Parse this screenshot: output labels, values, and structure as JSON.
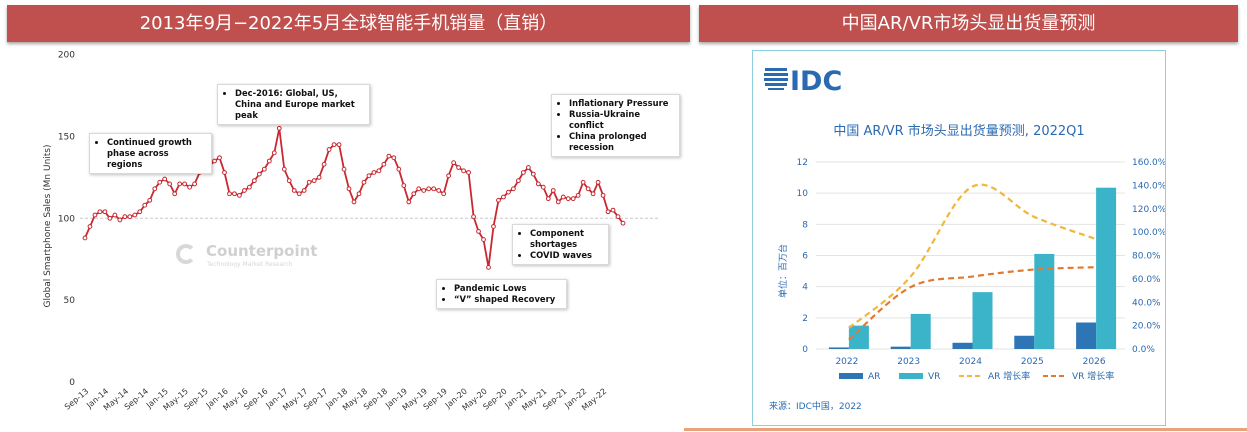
{
  "banners": {
    "left": "2013年9月−2022年5月全球智能手机销量（直销）",
    "right": "中国AR/VR市场头显出货量预测"
  },
  "left_annotations": {
    "growth": [
      "Continued growth phase across regions"
    ],
    "peak": [
      "Dec-2016: Global, US, China and Europe market peak"
    ],
    "inflation": [
      "Inflationary Pressure",
      "Russia-Ukraine conflict",
      "China prolonged recession"
    ],
    "component": [
      "Component shortages",
      "COVID waves"
    ],
    "pandemic": [
      "Pandemic Lows",
      "“V” shaped Recovery"
    ]
  },
  "watermark": {
    "name": "Counterpoint",
    "sub": "Technology Market Research"
  },
  "idc": {
    "logo": "IDC",
    "source": "来源：IDC中国，2022"
  },
  "chart_data": [
    {
      "type": "line",
      "title": "",
      "ylabel": "Global Smartphone Sales (Mn Units)",
      "ylim": [
        0,
        200
      ],
      "yticks": [
        0,
        50,
        100,
        150,
        200
      ],
      "reference_line": 100,
      "xtick_labels": [
        "Sep-13",
        "Jan-14",
        "May-14",
        "Sep-14",
        "Jan-15",
        "May-15",
        "Sep-15",
        "Jan-16",
        "May-16",
        "Sep-16",
        "Jan-17",
        "May-17",
        "Sep-17",
        "Jan-18",
        "May-18",
        "Sep-18",
        "Jan-19",
        "May-19",
        "Sep-19",
        "Jan-20",
        "May-20",
        "Sep-20",
        "Jan-21",
        "May-21",
        "Sep-21",
        "Jan-22",
        "May-22"
      ],
      "values": [
        88,
        95,
        102,
        104,
        104,
        100,
        102,
        99,
        101,
        101,
        102,
        104,
        108,
        111,
        118,
        122,
        124,
        121,
        115,
        121,
        121,
        119,
        121,
        128,
        130,
        132,
        135,
        137,
        128,
        115,
        115,
        114,
        117,
        119,
        123,
        127,
        130,
        135,
        140,
        155,
        130,
        123,
        117,
        115,
        117,
        122,
        123,
        125,
        133,
        142,
        145,
        145,
        130,
        118,
        110,
        115,
        122,
        126,
        128,
        129,
        133,
        138,
        137,
        130,
        120,
        110,
        115,
        118,
        117,
        118,
        118,
        117,
        115,
        126,
        134,
        131,
        129,
        128,
        101,
        92,
        87,
        70,
        95,
        111,
        113,
        116,
        118,
        123,
        128,
        131,
        127,
        121,
        119,
        112,
        117,
        110,
        113,
        112,
        112,
        114,
        122,
        118,
        115,
        122,
        114,
        104,
        105,
        101,
        97
      ],
      "series_color": "#c8282f"
    },
    {
      "type": "bar",
      "title": "中国 AR/VR 市场头显出货量预测, 2022Q1",
      "ylabel": "单位：百万台",
      "categories": [
        "2022",
        "2023",
        "2024",
        "2025",
        "2026"
      ],
      "ylim": [
        0,
        12
      ],
      "yticks": [
        0,
        2,
        4,
        6,
        8,
        10,
        12
      ],
      "y2lim": [
        0,
        160
      ],
      "y2ticks": [
        "0.0%",
        "20.0%",
        "40.0%",
        "60.0%",
        "80.0%",
        "100.0%",
        "120.0%",
        "140.0%",
        "160.0%"
      ],
      "series": [
        {
          "name": "AR",
          "kind": "bar",
          "values": [
            0.1,
            0.15,
            0.4,
            0.85,
            1.7
          ],
          "color": "#2e75b6"
        },
        {
          "name": "VR",
          "kind": "bar",
          "values": [
            1.5,
            2.25,
            3.65,
            6.1,
            10.35
          ],
          "color": "#3bb3c9"
        },
        {
          "name": "AR 增长率",
          "kind": "line",
          "axis": "right",
          "values": [
            18,
            62,
            139,
            113,
            94
          ],
          "color": "#f0b73a"
        },
        {
          "name": "VR 增长率",
          "kind": "line",
          "axis": "right",
          "values": [
            8,
            53,
            62,
            68,
            70
          ],
          "color": "#e3792e"
        }
      ]
    }
  ]
}
